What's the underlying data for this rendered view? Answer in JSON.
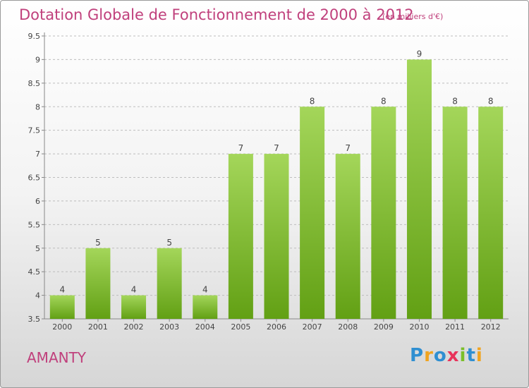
{
  "header": {
    "title": "Dotation Globale de Fonctionnement de 2000 à 2012",
    "subtitle": "(en milliers d'€)"
  },
  "footer": {
    "commune": "AMANTY",
    "brand": "Proxiti",
    "brand_letters": [
      {
        "char": "P",
        "color": "#2f8fd1"
      },
      {
        "char": "r",
        "color": "#f0a420"
      },
      {
        "char": "o",
        "color": "#2f8fd1"
      },
      {
        "char": "x",
        "color": "#e8335a"
      },
      {
        "char": "i",
        "color": "#7bbf2a"
      },
      {
        "char": "t",
        "color": "#2f8fd1"
      },
      {
        "char": "i",
        "color": "#f0a420"
      }
    ]
  },
  "colors": {
    "bar_light": "#a4d65a",
    "bar_dark": "#62a014",
    "accent": "#c0407c",
    "grid": "#bdbdbd"
  },
  "chart_data": {
    "type": "bar",
    "title": "Dotation Globale de Fonctionnement de 2000 à 2012",
    "subtitle": "(en milliers d'€)",
    "xlabel": "",
    "ylabel": "",
    "categories": [
      "2000",
      "2001",
      "2002",
      "2003",
      "2004",
      "2005",
      "2006",
      "2007",
      "2008",
      "2009",
      "2010",
      "2011",
      "2012"
    ],
    "values": [
      4,
      5,
      4,
      5,
      4,
      7,
      7,
      8,
      7,
      8,
      9,
      8,
      8
    ],
    "ylim": [
      3.5,
      9.5
    ],
    "yticks": [
      "3.5",
      "4",
      "4.5",
      "5",
      "5.5",
      "6",
      "6.5",
      "7",
      "7.5",
      "8",
      "8.5",
      "9",
      "9.5"
    ],
    "grid": true,
    "legend": "none"
  }
}
